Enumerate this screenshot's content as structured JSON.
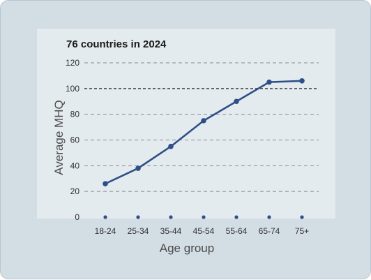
{
  "chart_data": {
    "type": "line",
    "title": "76 countries in 2024",
    "xlabel": "Age group",
    "ylabel": "Average MHQ",
    "categories": [
      "18-24",
      "25-34",
      "35-44",
      "45-54",
      "55-64",
      "65-74",
      "75+"
    ],
    "series": [
      {
        "values": [
          26,
          38,
          55,
          75,
          90,
          105,
          106
        ]
      }
    ],
    "ylim": [
      0,
      120
    ],
    "yticks": [
      0,
      20,
      40,
      60,
      80,
      100,
      120
    ],
    "reference_line": 100,
    "grid": "horizontal dashed",
    "colors": {
      "line": "#2e4f87",
      "grid": "#8a8a8a",
      "reference": "#555555",
      "panel": "#e4ebef",
      "card": "#d3dde4"
    }
  }
}
